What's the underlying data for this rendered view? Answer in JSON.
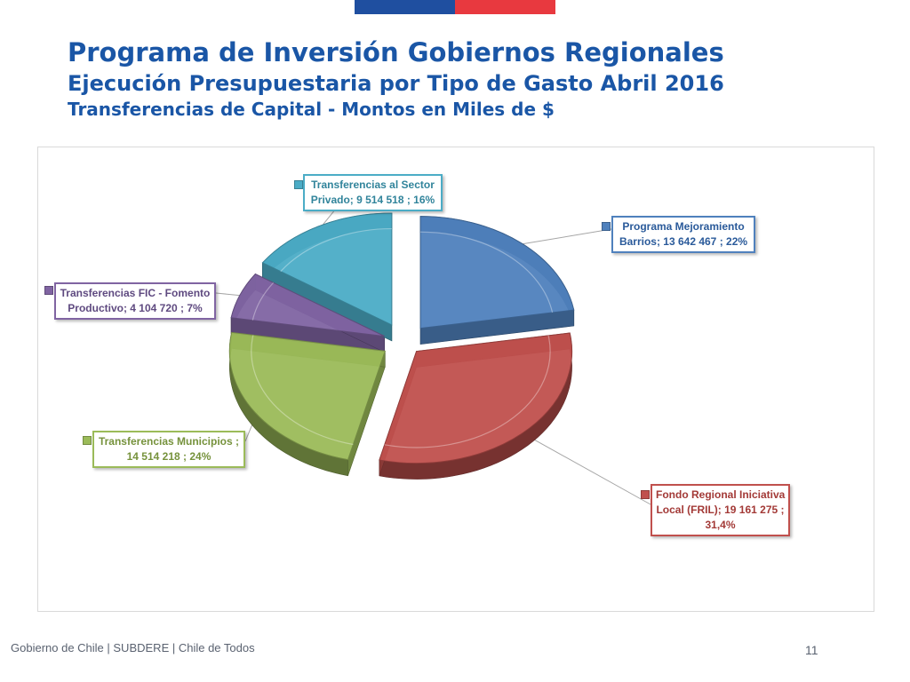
{
  "header": {
    "title": "Programa de Inversión Gobiernos Regionales",
    "subtitle": "Ejecución Presupuestaria por Tipo de Gasto Abril 2016",
    "subtitle2": "Transferencias de Capital - Montos en Miles de $"
  },
  "footer": {
    "left": "Gobierno de Chile | SUBDERE | Chile de Todos",
    "page": "11"
  },
  "chart_data": {
    "type": "pie",
    "title": "Transferencias de Capital - Montos en Miles de $",
    "slices": [
      {
        "name": "Programa Mejoramiento Barrios",
        "value": 13642467,
        "percent": 22,
        "color": "#4f81bd",
        "label_lines": [
          "Programa Mejoramiento",
          "Barrios;  13 642 467 ; 22%"
        ]
      },
      {
        "name": "Fondo Regional Iniciativa Local (FRIL)",
        "value": 19161275,
        "percent": 31.4,
        "color": "#c0504d",
        "label_lines": [
          "Fondo Regional Iniciativa",
          "Local (FRIL);  19 161 275 ;",
          "31,4%"
        ]
      },
      {
        "name": "Transferencias Municipios",
        "value": 14514218,
        "percent": 24,
        "color": "#9bbb59",
        "label_lines": [
          "Transferencias Municipios ;",
          "14 514 218 ; 24%"
        ]
      },
      {
        "name": "Transferencias FIC - Fomento Productivo",
        "value": 4104720,
        "percent": 7,
        "color": "#8064a2",
        "label_lines": [
          "Transferencias FIC - Fomento",
          "Productivo;  4 104 720 ; 7%"
        ]
      },
      {
        "name": "Transferencias al Sector Privado",
        "value": 9514518,
        "percent": 16,
        "color": "#4bacc6",
        "label_lines": [
          "Transferencias al Sector",
          "Privado;  9 514 518 ; 16%"
        ]
      }
    ]
  }
}
